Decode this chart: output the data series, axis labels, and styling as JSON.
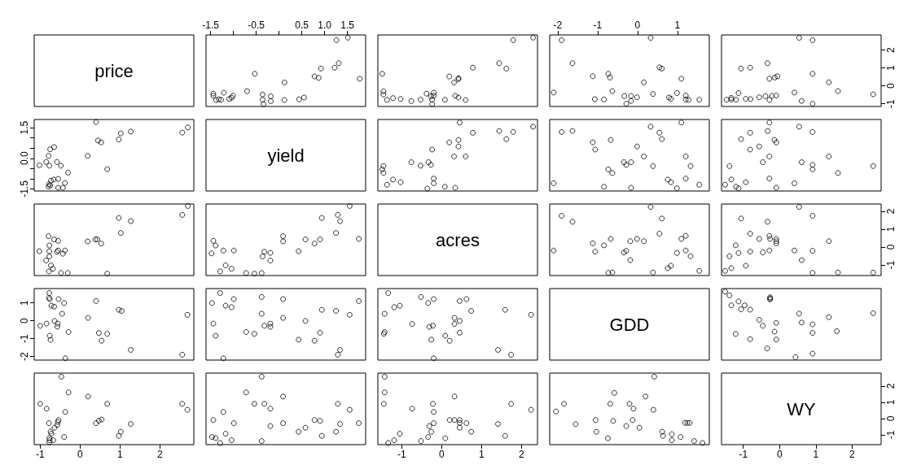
{
  "chart_data": [
    {
      "type": "other",
      "title": "price"
    },
    {
      "type": "scatter",
      "marker": "circle",
      "tick_labels": "x",
      "xlim": [
        -1.6,
        1.9
      ],
      "ylim": [
        -1.15,
        2.85
      ],
      "xticks": [
        -1.5,
        {
          "value": -1,
          "label": null
        },
        -0.5,
        {
          "value": 0,
          "label": null
        },
        0.5,
        {
          "value": 1,
          "label": "1.0"
        },
        1.5
      ],
      "x": [
        -0.34,
        -0.18,
        -0.36,
        0.12,
        0.44,
        0.55,
        -0.18,
        -0.36,
        -0.7,
        -1.01,
        -1.04,
        -1.09,
        -1.27,
        -1.38,
        -1.32,
        -1.44,
        -1.44,
        -1.21,
        0.12,
        1.77,
        0.87,
        0.78,
        -0.53,
        0.92,
        1.22,
        1.31,
        1.26,
        1.51
      ],
      "series": [
        {
          "color": "#000000",
          "values": [
            -1.02,
            -0.85,
            -0.77,
            -0.79,
            -0.75,
            -0.65,
            -0.58,
            -0.48,
            -0.3,
            -0.55,
            -0.66,
            -0.73,
            -0.78,
            -0.79,
            -0.75,
            -0.55,
            -0.43,
            -0.38,
            0.19,
            0.4,
            0.45,
            0.53,
            0.68,
            0.97,
            1.02,
            1.27,
            2.56,
            2.7
          ]
        }
      ]
    },
    {
      "type": "scatter",
      "marker": "circle",
      "tick_labels": false,
      "xlim": [
        -1.6,
        2.4
      ],
      "ylim": [
        -1.15,
        2.85
      ],
      "x": [
        2.29,
        1.79,
        1.62,
        1.44,
        0.78,
        0.31,
        0.42,
        0.42,
        0.19,
        0.6,
        0.42,
        0.34,
        0.08,
        -0.24,
        -0.24,
        -0.27,
        -0.2,
        -0.2,
        -0.38,
        -0.76,
        -0.53,
        -1.03,
        -1.22,
        -1.37,
        -1.46,
        -1.46,
        -1.49
      ],
      "series": [
        {
          "color": "#000000",
          "values": [
            2.7,
            2.56,
            0.97,
            1.27,
            1.02,
            0.19,
            0.38,
            0.43,
            0.53,
            -0.79,
            -0.65,
            -0.55,
            -0.77,
            -1.02,
            -0.77,
            -0.58,
            -0.55,
            -0.38,
            -0.43,
            -0.85,
            -0.77,
            -0.73,
            -0.68,
            -0.78,
            -0.48,
            -0.31,
            0.68
          ]
        }
      ]
    },
    {
      "type": "scatter",
      "marker": "circle",
      "tick_labels": "x",
      "xlim": [
        -2.2,
        1.8
      ],
      "ylim": [
        -1.15,
        2.85
      ],
      "xticks": [
        -2,
        -1,
        0,
        1
      ],
      "x": [
        1.55,
        1.28,
        1.21,
        1.21,
        0.99,
        0.84,
        0.79,
        0.39,
        -0.01,
        -0.16,
        -0.16,
        -0.33,
        -0.28,
        -0.84,
        -1.07,
        -0.63,
        1.1,
        0.16,
        0.61,
        0.55,
        -0.69,
        -0.73,
        -1.12,
        -1.63,
        -2.1,
        -1.9,
        0.33
      ],
      "series": [
        {
          "color": "#000000",
          "values": [
            -0.77,
            -0.78,
            -0.76,
            -0.54,
            -0.4,
            -0.72,
            -0.65,
            -0.45,
            -0.64,
            -0.84,
            -0.56,
            -0.57,
            -1,
            -0.76,
            -0.74,
            -0.29,
            0.4,
            0.2,
            0.97,
            1.04,
            0.47,
            0.68,
            0.54,
            1.27,
            -0.37,
            2.56,
            2.69
          ]
        }
      ]
    },
    {
      "type": "scatter",
      "marker": "circle",
      "tick_labels": "y",
      "xlim": [
        -1.6,
        2.8
      ],
      "ylim": [
        -1.15,
        2.85
      ],
      "yticks": [
        -1,
        0,
        1,
        2
      ],
      "x": [
        2.58,
        1.61,
        1.36,
        0.91,
        0.61,
        0.91,
        0.41,
        0.91,
        0.54,
        -0.09,
        -0.21,
        -0.28,
        -0.39,
        -0.56,
        -0.8,
        -0.93,
        -1.2,
        -1.33,
        -1.33,
        -1.46,
        -1.13,
        -0.28,
        -0.13,
        -0.06,
        -0.33,
        -1.06,
        -0.81
      ],
      "series": [
        {
          "color": "#000000",
          "values": [
            -0.47,
            -0.29,
            0.2,
            -1,
            -0.84,
            0.68,
            -0.37,
            2.56,
            2.69,
            -0.54,
            -0.56,
            -0.78,
            -0.57,
            -0.64,
            -0.74,
            -0.72,
            -0.77,
            -0.76,
            -0.67,
            -0.77,
            -0.4,
            0.4,
            0.47,
            0.54,
            1.27,
            0.97,
            1.02
          ]
        }
      ]
    },
    {
      "type": "scatter",
      "marker": "circle",
      "tick_labels": "y",
      "xlim": [
        -1.15,
        2.85
      ],
      "ylim": [
        -1.6,
        1.9
      ],
      "yticks": [
        -1.5,
        {
          "value": -1,
          "label": null
        },
        {
          "value": -0.5,
          "label": null
        },
        {
          "value": 0,
          "label": "0.0"
        },
        {
          "value": 0.5,
          "label": null
        },
        {
          "value": 1,
          "label": null
        },
        1.5
      ],
      "x": [
        -1.02,
        -0.85,
        -0.77,
        -0.79,
        -0.75,
        -0.65,
        -0.58,
        -0.48,
        -0.3,
        -0.55,
        -0.66,
        -0.73,
        -0.78,
        -0.79,
        -0.75,
        -0.55,
        -0.43,
        -0.38,
        0.19,
        0.4,
        0.45,
        0.53,
        0.68,
        0.97,
        1.02,
        1.27,
        2.56,
        2.7
      ],
      "series": [
        {
          "color": "#000000",
          "values": [
            -0.34,
            -0.18,
            -0.36,
            0.12,
            0.44,
            0.55,
            -0.18,
            -0.36,
            -0.7,
            -1.01,
            -1.04,
            -1.09,
            -1.27,
            -1.38,
            -1.32,
            -1.44,
            -1.44,
            -1.21,
            0.12,
            1.77,
            0.87,
            0.78,
            -0.53,
            0.92,
            1.22,
            1.31,
            1.26,
            1.51
          ]
        }
      ]
    },
    {
      "type": "other",
      "title": "yield"
    },
    {
      "type": "scatter",
      "marker": "circle",
      "tick_labels": false,
      "xlim": [
        -1.6,
        2.4
      ],
      "ylim": [
        -1.6,
        1.9
      ],
      "x": [
        0.34,
        0.08,
        -0.36,
        -0.2,
        -0.2,
        -1.37,
        -1.03,
        -1.22,
        -1.46,
        -1.49,
        -1.46,
        -0.53,
        -0.27,
        -0.33,
        -0.76,
        0.6,
        0.31,
        -0.24,
        0.42,
        0.19,
        0.42,
        1.62,
        0.78,
        1.79,
        1.44,
        2.29,
        0.45
      ],
      "series": [
        {
          "color": "#000000",
          "values": [
            -1.44,
            -1.39,
            -1.48,
            -1.22,
            -0.99,
            -1.29,
            -1.17,
            -1.04,
            -0.72,
            -0.54,
            -0.38,
            -0.36,
            -0.32,
            -0.19,
            -0.19,
            0.09,
            0.09,
            0.43,
            0.58,
            0.78,
            0.9,
            0.94,
            1.25,
            1.29,
            1.34,
            1.55,
            1.75
          ]
        }
      ]
    },
    {
      "type": "scatter",
      "marker": "circle",
      "tick_labels": false,
      "xlim": [
        -2.2,
        1.8
      ],
      "ylim": [
        -1.6,
        1.9
      ],
      "x": [
        1.55,
        0.99,
        0.84,
        0.76,
        1.21,
        1.33,
        1.21,
        1.1,
        -0.16,
        -0.84,
        -2.1,
        -0.63,
        -0.73,
        0.39,
        0.16,
        -0.28,
        -0.16,
        -0.34,
        -0.01,
        0.61,
        0.55,
        0.33,
        -1.06,
        -1.12,
        -0.67,
        -1.9,
        -1.63
      ],
      "series": [
        {
          "color": "#000000",
          "values": [
            -1.29,
            -1.47,
            -1.17,
            -1.04,
            -0.99,
            -0.38,
            0.09,
            1.75,
            -1.44,
            -1.39,
            -1.22,
            -0.72,
            -0.54,
            -0.38,
            0.09,
            -0.32,
            -0.19,
            -0.19,
            0.58,
            0.94,
            1.25,
            1.55,
            0.43,
            0.78,
            0.9,
            1.29,
            1.34
          ]
        }
      ]
    },
    {
      "type": "scatter",
      "marker": "circle",
      "tick_labels": false,
      "xlim": [
        -1.6,
        2.8
      ],
      "ylim": [
        -1.6,
        1.9
      ],
      "x": [
        2.58,
        1.61,
        1.36,
        0.91,
        0.91,
        0.61,
        0.41,
        -0.09,
        -0.28,
        -0.28,
        -0.46,
        -0.09,
        -0.14,
        0.91,
        0.54,
        -0.33,
        -0.28,
        -0.81,
        -0.56,
        -0.81,
        -1.06,
        -1.13,
        -1.2,
        -1.5,
        -0.93,
        -1.33,
        -1.38
      ],
      "series": [
        {
          "color": "#000000",
          "values": [
            -0.38,
            -0.72,
            0.09,
            -0.54,
            -0.32,
            -0.19,
            -1.22,
            -1.44,
            -0.99,
            0.09,
            -0.19,
            0.78,
            0.9,
            1.29,
            1.55,
            1.34,
            1.75,
            0.43,
            0.58,
            1.25,
            0.94,
            -1.47,
            -1.39,
            -1.29,
            -1.17,
            -1.04,
            -0.38
          ]
        }
      ]
    },
    {
      "type": "scatter",
      "marker": "circle",
      "tick_labels": false,
      "xlim": [
        -1.15,
        2.85
      ],
      "ylim": [
        -1.6,
        2.4
      ],
      "x": [
        2.7,
        2.56,
        0.97,
        1.27,
        1.02,
        0.19,
        0.38,
        0.43,
        0.53,
        -0.79,
        -0.65,
        -0.55,
        -0.77,
        -1.02,
        -0.77,
        -0.58,
        -0.55,
        -0.38,
        -0.43,
        -0.85,
        -0.77,
        -0.73,
        -0.68,
        -0.78,
        -0.48,
        -0.31,
        0.68
      ],
      "series": [
        {
          "color": "#000000",
          "values": [
            2.29,
            1.79,
            1.62,
            1.44,
            0.78,
            0.31,
            0.42,
            0.42,
            0.19,
            0.6,
            0.42,
            0.34,
            0.08,
            -0.24,
            -0.24,
            -0.27,
            -0.2,
            -0.2,
            -0.38,
            -0.76,
            -0.53,
            -1.03,
            -1.22,
            -1.37,
            -1.46,
            -1.46,
            -1.49
          ]
        }
      ]
    },
    {
      "type": "scatter",
      "marker": "circle",
      "tick_labels": false,
      "xlim": [
        -1.6,
        1.9
      ],
      "ylim": [
        -1.6,
        2.4
      ],
      "x": [
        -1.44,
        -1.39,
        -1.48,
        -1.22,
        -0.99,
        -1.29,
        -1.17,
        -1.04,
        -0.72,
        -0.54,
        -0.38,
        -0.36,
        -0.32,
        -0.19,
        -0.19,
        0.09,
        0.09,
        0.43,
        0.58,
        0.78,
        0.9,
        0.94,
        1.25,
        1.29,
        1.34,
        1.55,
        1.75
      ],
      "series": [
        {
          "color": "#000000",
          "values": [
            0.34,
            0.08,
            -0.36,
            -0.2,
            -0.2,
            -1.37,
            -1.03,
            -1.22,
            -1.46,
            -1.49,
            -1.46,
            -0.53,
            -0.27,
            -0.33,
            -0.76,
            0.6,
            0.31,
            -0.24,
            0.42,
            0.19,
            0.42,
            1.62,
            0.78,
            1.79,
            1.44,
            2.29,
            0.45
          ]
        }
      ]
    },
    {
      "type": "other",
      "title": "acres"
    },
    {
      "type": "scatter",
      "marker": "circle",
      "tick_labels": false,
      "xlim": [
        -2.2,
        1.8
      ],
      "ylim": [
        -1.6,
        2.4
      ],
      "x": [
        1.55,
        1.33,
        0.99,
        1.21,
        1.1,
        1.21,
        0.76,
        0.84,
        0.39,
        0.55,
        0.61,
        0.33,
        0.16,
        -0.01,
        -0.18,
        -0.18,
        -0.34,
        -0.28,
        -0.63,
        -0.73,
        -0.67,
        -0.84,
        -1.12,
        -1.06,
        -1.63,
        -1.9,
        -2.1
      ],
      "series": [
        {
          "color": "#000000",
          "values": [
            -1.34,
            -0.52,
            -0.34,
            -0.2,
            0.45,
            0.62,
            -1.19,
            -1.05,
            -1.43,
            0.74,
            1.59,
            2.24,
            0.32,
            0.45,
            0.32,
            -0.74,
            -0.31,
            -0.22,
            -1.43,
            -1.45,
            0.45,
            0.09,
            0.2,
            -0.26,
            1.41,
            1.74,
            -0.2
          ]
        }
      ]
    },
    {
      "type": "scatter",
      "marker": "circle",
      "tick_labels": "y",
      "xlim": [
        -1.6,
        2.8
      ],
      "ylim": [
        -1.6,
        2.4
      ],
      "yticks": [
        -1,
        0,
        1,
        2
      ],
      "x": [
        2.58,
        1.61,
        0.91,
        1.36,
        0.91,
        0.91,
        0.61,
        0.41,
        0.54,
        -0.09,
        -0.09,
        -0.09,
        -0.26,
        -0.28,
        -0.28,
        -0.33,
        -0.46,
        -0.81,
        -0.81,
        -0.56,
        -1.13,
        -1.06,
        -0.93,
        -1.33,
        -1.5,
        -1.38,
        -1.21
      ],
      "series": [
        {
          "color": "#000000",
          "values": [
            -1.43,
            -1.43,
            -1.45,
            0.32,
            -0.22,
            1.74,
            -0.74,
            -0.2,
            2.24,
            0.2,
            0.32,
            0.45,
            0.45,
            0.62,
            -0.2,
            1.41,
            -0.31,
            -0.26,
            0.74,
            0.45,
            -0.34,
            1.59,
            -1.05,
            -1.19,
            -1.34,
            -0.52,
            0.09
          ]
        }
      ]
    },
    {
      "type": "scatter",
      "marker": "circle",
      "tick_labels": "y",
      "xlim": [
        -1.15,
        2.85
      ],
      "ylim": [
        -2.2,
        1.8
      ],
      "yticks": [
        -2,
        -1,
        0,
        1
      ],
      "x": [
        -0.77,
        -0.78,
        -0.76,
        -0.54,
        -0.4,
        -0.72,
        -0.65,
        -0.45,
        -0.64,
        -0.84,
        -0.56,
        -0.57,
        -1,
        -0.76,
        -0.74,
        -0.29,
        0.4,
        0.2,
        0.97,
        1.04,
        0.47,
        0.68,
        0.54,
        1.27,
        -0.37,
        2.56,
        2.69
      ],
      "series": [
        {
          "color": "#000000",
          "values": [
            1.55,
            1.28,
            1.21,
            1.21,
            0.99,
            0.84,
            0.79,
            0.39,
            -0.01,
            -0.16,
            -0.16,
            -0.33,
            -0.28,
            -0.84,
            -1.07,
            -0.63,
            1.1,
            0.16,
            0.61,
            0.55,
            -0.69,
            -0.73,
            -1.12,
            -1.63,
            -2.1,
            -1.9,
            0.33
          ]
        }
      ]
    },
    {
      "type": "scatter",
      "marker": "circle",
      "tick_labels": false,
      "xlim": [
        -1.6,
        1.9
      ],
      "ylim": [
        -2.2,
        1.8
      ],
      "x": [
        -1.29,
        -1.47,
        -1.17,
        -1.04,
        -0.99,
        -0.38,
        0.09,
        1.75,
        -1.44,
        -1.39,
        -1.22,
        -0.72,
        -0.54,
        -0.38,
        0.09,
        -0.32,
        -0.19,
        -0.19,
        0.58,
        0.94,
        1.25,
        1.55,
        0.43,
        0.78,
        0.9,
        1.29,
        1.34
      ],
      "series": [
        {
          "color": "#000000",
          "values": [
            1.55,
            0.99,
            0.84,
            0.76,
            1.21,
            1.33,
            1.21,
            1.1,
            -0.16,
            -0.84,
            -2.1,
            -0.63,
            -0.73,
            0.39,
            0.16,
            -0.28,
            -0.16,
            -0.34,
            -0.01,
            0.61,
            0.55,
            0.33,
            -1.06,
            -1.12,
            -0.67,
            -1.9,
            -1.63
          ]
        }
      ]
    },
    {
      "type": "scatter",
      "marker": "circle",
      "tick_labels": false,
      "xlim": [
        -1.6,
        2.4
      ],
      "ylim": [
        -2.2,
        1.8
      ],
      "x": [
        -1.34,
        -0.52,
        -0.34,
        -0.2,
        0.45,
        0.62,
        -1.19,
        -1.05,
        -1.43,
        0.74,
        1.59,
        2.24,
        0.32,
        0.45,
        0.32,
        -0.74,
        -0.31,
        -0.22,
        -1.43,
        -1.45,
        0.45,
        0.09,
        0.2,
        -0.26,
        1.41,
        1.74,
        -0.2
      ],
      "series": [
        {
          "color": "#000000",
          "values": [
            1.55,
            1.33,
            0.99,
            1.21,
            1.1,
            1.21,
            0.76,
            0.84,
            0.39,
            0.55,
            0.61,
            0.33,
            0.16,
            -0.01,
            -0.18,
            -0.18,
            -0.34,
            -0.28,
            -0.63,
            -0.73,
            -0.67,
            -0.84,
            -1.12,
            -1.06,
            -1.63,
            -1.9,
            -2.1
          ]
        }
      ]
    },
    {
      "type": "other",
      "title": "GDD"
    },
    {
      "type": "scatter",
      "marker": "circle",
      "tick_labels": false,
      "xlim": [
        -1.6,
        2.8
      ],
      "ylim": [
        -2.2,
        1.8
      ],
      "x": [
        0.44,
        0.91,
        -0.34,
        -0.09,
        -0.81,
        -1.21,
        0.91,
        -0.14,
        1.58,
        -0.46,
        0.91,
        -0.09,
        0.61,
        -0.56,
        1.36,
        0.54,
        2.58,
        -0.81,
        -1.06,
        -0.96,
        -1.33,
        -1.13,
        -0.26,
        -0.26,
        -0.26,
        -1.38,
        -1.5
      ],
      "series": [
        {
          "color": "#000000",
          "values": [
            -2.04,
            -1.84,
            -1.55,
            -1.05,
            -1.03,
            -0.74,
            -0.68,
            -0.61,
            -0.58,
            -0.28,
            -0.2,
            -0.12,
            -0.1,
            0.05,
            0.2,
            0.4,
            0.42,
            0.62,
            0.64,
            0.86,
            0.86,
            1.08,
            1.19,
            1.25,
            1.31,
            1.42,
            1.63
          ]
        }
      ]
    },
    {
      "type": "scatter",
      "marker": "circle",
      "tick_labels": "x",
      "xlim": [
        -1.15,
        2.85
      ],
      "ylim": [
        -1.6,
        2.8
      ],
      "xticks": [
        -1,
        0,
        1,
        2
      ],
      "x": [
        -0.47,
        -0.29,
        0.2,
        -1,
        -0.84,
        0.68,
        -0.37,
        2.56,
        2.69,
        -0.54,
        -0.56,
        -0.78,
        -0.57,
        -0.64,
        -0.74,
        -0.72,
        -0.77,
        -0.76,
        -0.67,
        -0.77,
        -0.4,
        0.4,
        0.47,
        0.54,
        1.27,
        0.97,
        1.02
      ],
      "series": [
        {
          "color": "#000000",
          "values": [
            2.58,
            1.61,
            1.36,
            0.91,
            0.61,
            0.91,
            0.41,
            0.91,
            0.54,
            -0.09,
            -0.21,
            -0.28,
            -0.39,
            -0.56,
            -0.8,
            -0.93,
            -1.2,
            -1.33,
            -1.33,
            -1.46,
            -1.13,
            -0.28,
            -0.13,
            -0.06,
            -0.33,
            -1.06,
            -0.81
          ]
        }
      ]
    },
    {
      "type": "scatter",
      "marker": "circle",
      "tick_labels": false,
      "xlim": [
        -1.6,
        1.9
      ],
      "ylim": [
        -1.6,
        2.8
      ],
      "x": [
        -0.38,
        -0.72,
        0.09,
        -0.54,
        -0.32,
        -0.19,
        -1.22,
        -1.44,
        -0.99,
        0.09,
        -0.19,
        0.78,
        0.9,
        1.29,
        1.55,
        1.34,
        1.75,
        0.43,
        0.58,
        1.25,
        0.94,
        -1.47,
        -1.39,
        -1.29,
        -1.17,
        -1.04,
        -0.38
      ],
      "series": [
        {
          "color": "#000000",
          "values": [
            2.58,
            1.61,
            1.36,
            0.91,
            0.91,
            0.61,
            0.41,
            -0.09,
            -0.28,
            -0.28,
            -0.46,
            -0.09,
            -0.14,
            0.91,
            0.54,
            -0.33,
            -0.28,
            -0.81,
            -0.56,
            -0.81,
            -1.06,
            -1.13,
            -1.2,
            -1.5,
            -0.93,
            -1.33,
            -1.38
          ]
        }
      ]
    },
    {
      "type": "scatter",
      "marker": "circle",
      "tick_labels": "x",
      "xlim": [
        -1.6,
        2.4
      ],
      "ylim": [
        -1.6,
        2.8
      ],
      "xticks": [
        -1,
        0,
        1,
        2
      ],
      "x": [
        -1.43,
        -1.43,
        -1.45,
        0.32,
        -0.22,
        1.74,
        -0.74,
        -0.2,
        2.24,
        0.2,
        0.32,
        0.45,
        0.45,
        0.62,
        -0.2,
        1.41,
        -0.31,
        -0.26,
        0.74,
        0.45,
        -0.34,
        1.59,
        -1.05,
        -1.19,
        -1.34,
        -0.52,
        0.09
      ],
      "series": [
        {
          "color": "#000000",
          "values": [
            2.58,
            1.61,
            0.91,
            1.36,
            0.91,
            0.91,
            0.61,
            0.41,
            0.54,
            -0.09,
            -0.09,
            -0.09,
            -0.26,
            -0.28,
            -0.28,
            -0.33,
            -0.46,
            -0.81,
            -0.81,
            -0.56,
            -1.13,
            -1.06,
            -0.93,
            -1.33,
            -1.5,
            -1.38,
            -1.21
          ]
        }
      ]
    },
    {
      "type": "scatter",
      "marker": "circle",
      "tick_labels": false,
      "xlim": [
        -2.2,
        1.8
      ],
      "ylim": [
        -1.6,
        2.8
      ],
      "x": [
        -2.04,
        -1.84,
        -1.55,
        -1.05,
        -1.03,
        -0.74,
        -0.68,
        -0.61,
        -0.58,
        -0.28,
        -0.2,
        -0.12,
        -0.1,
        0.05,
        0.2,
        0.4,
        0.42,
        0.62,
        0.64,
        0.86,
        0.86,
        1.08,
        1.19,
        1.25,
        1.31,
        1.42,
        1.63
      ],
      "series": [
        {
          "color": "#000000",
          "values": [
            0.44,
            0.91,
            -0.34,
            -0.09,
            -0.81,
            -1.21,
            0.91,
            -0.14,
            1.58,
            -0.46,
            0.91,
            -0.09,
            0.61,
            -0.56,
            1.36,
            0.54,
            2.58,
            -0.81,
            -1.06,
            -0.96,
            -1.33,
            -1.13,
            -0.26,
            -0.26,
            -0.26,
            -1.38,
            -1.5
          ]
        }
      ]
    },
    {
      "type": "scatter",
      "title": "WY",
      "xlim": [
        -1.6,
        2.8
      ],
      "ylim": [
        -1.6,
        2.8
      ],
      "xticks": [
        -1,
        0,
        1,
        2
      ],
      "yticks": [
        -1,
        0,
        1,
        2
      ]
    }
  ]
}
